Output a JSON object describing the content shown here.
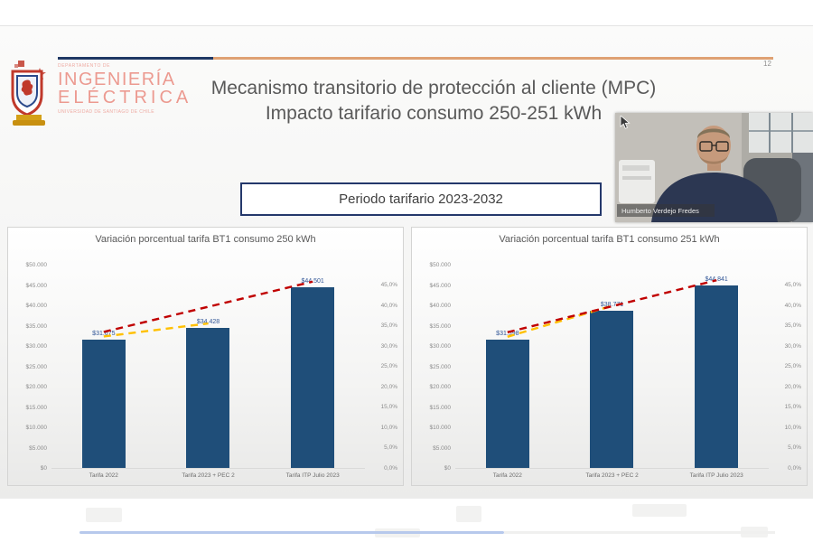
{
  "slide": {
    "number": "12"
  },
  "logo": {
    "department": "DEPARTAMENTO DE",
    "name_line1": "INGENIERÍA",
    "name_line2": "ELÉCTRICA",
    "university": "UNIVERSIDAD DE SANTIAGO DE CHILE"
  },
  "title": {
    "line1": "Mecanismo transitorio de protección al cliente (MPC)",
    "line2": "Impacto tarifario consumo 250-251 kWh"
  },
  "period_box": {
    "label": "Periodo tarifario 2023-2032"
  },
  "webcam": {
    "name": "Humberto Verdejo Fredes"
  },
  "colors": {
    "bar": "#1f4e79",
    "trend_red": "#c00000",
    "trend_orange": "#ffc000",
    "accent_navy": "#1f3864",
    "rule_orange": "#dfa173",
    "logo_salmon": "#ec9a90"
  },
  "chart_data": [
    {
      "type": "bar",
      "title": "Variación porcentual tarifa BT1 consumo 250 kWh",
      "categories": [
        "Tarifa 2022",
        "Tarifa 2023 + PEC 2",
        "Tarifa ITP Julio 2023"
      ],
      "values": [
        31675,
        34428,
        44501
      ],
      "value_labels": [
        "$31.675",
        "$34.428",
        "$44.501"
      ],
      "y_left_ticks": [
        "$50.000",
        "$45.000",
        "$40.000",
        "$35.000",
        "$30.000",
        "$25.000",
        "$20.000",
        "$15.000",
        "$10.000",
        "$5.000",
        "$0"
      ],
      "y_right_ticks": [
        "45,0%",
        "40,0%",
        "35,0%",
        "30,0%",
        "25,0%",
        "20,0%",
        "15,0%",
        "10,0%",
        "5,0%",
        "0,0%"
      ],
      "ylim": [
        0,
        50000
      ],
      "right_axis_lim_percent": [
        0,
        45
      ],
      "grid": false,
      "legend": false
    },
    {
      "type": "bar",
      "title": "Variación porcentual tarifa BT1 consumo 251 kWh",
      "categories": [
        "Tarifa 2022",
        "Tarifa 2023 + PEC 2",
        "Tarifa ITP Julio 2023"
      ],
      "values": [
        31598,
        38771,
        44841
      ],
      "value_labels": [
        "$31.598",
        "$38.771",
        "$44.841"
      ],
      "y_left_ticks": [
        "$50.000",
        "$45.000",
        "$40.000",
        "$35.000",
        "$30.000",
        "$25.000",
        "$20.000",
        "$15.000",
        "$10.000",
        "$5.000",
        "$0"
      ],
      "y_right_ticks": [
        "45,0%",
        "40,0%",
        "35,0%",
        "30,0%",
        "25,0%",
        "20,0%",
        "15,0%",
        "10,0%",
        "5,0%",
        "0,0%"
      ],
      "ylim": [
        0,
        50000
      ],
      "right_axis_lim_percent": [
        0,
        45
      ],
      "grid": false,
      "legend": false
    }
  ]
}
